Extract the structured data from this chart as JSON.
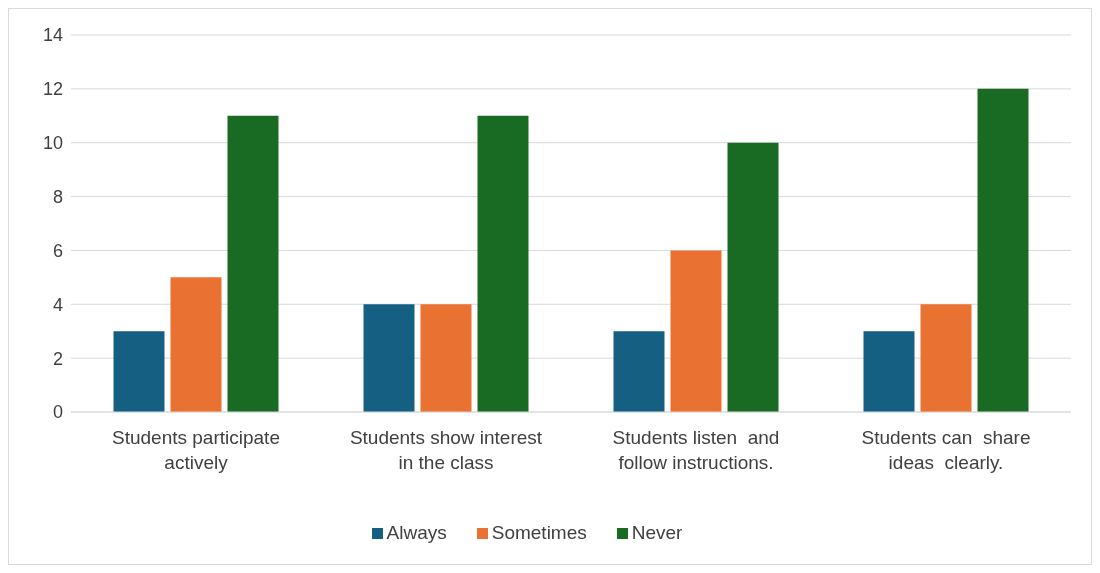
{
  "chart_data": {
    "type": "bar",
    "categories": [
      "Students participate actively",
      "Students show interest in the class",
      "Students listen  and follow instructions.",
      "Students can  share ideas  clearly."
    ],
    "series": [
      {
        "name": "Always",
        "color": "#156082",
        "values": [
          3,
          4,
          3,
          3
        ]
      },
      {
        "name": "Sometimes",
        "color": "#e97132",
        "values": [
          5,
          4,
          6,
          4
        ]
      },
      {
        "name": "Never",
        "color": "#196b24",
        "values": [
          11,
          11,
          10,
          12
        ]
      }
    ],
    "ylim": [
      0,
      14
    ],
    "yticks": [
      0,
      2,
      4,
      6,
      8,
      10,
      12,
      14
    ],
    "grid": "y",
    "legend": "bottom"
  }
}
